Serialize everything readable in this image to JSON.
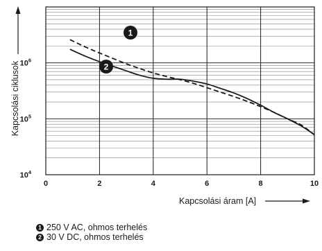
{
  "chart_data": {
    "type": "line",
    "xlabel": "Kapcsolási áram [A]",
    "ylabel": "Kapcsolási ciklusok",
    "xlim": [
      0,
      10
    ],
    "ylim": [
      10000,
      10000000
    ],
    "yscale": "log",
    "grid": true,
    "x_ticks": [
      "0",
      "2",
      "4",
      "6",
      "8",
      "10"
    ],
    "y_ticks": [
      {
        "base": "10",
        "exp": "4",
        "value": 10000
      },
      {
        "base": "10",
        "exp": "5",
        "value": 100000
      },
      {
        "base": "10",
        "exp": "6",
        "value": 1000000
      }
    ],
    "series": [
      {
        "name": "250 V AC, ohmos terhelés",
        "marker": "1",
        "style": "dashed",
        "x": [
          0.9,
          1.5,
          2.0,
          2.5,
          3.0,
          3.5,
          4.0,
          4.5,
          5.0,
          5.5,
          6.0,
          6.5,
          7.0,
          7.5,
          8.0,
          8.5,
          9.0,
          9.5,
          10.0
        ],
        "y": [
          2600000,
          1900000,
          1500000,
          1200000,
          960000,
          790000,
          660000,
          570000,
          500000,
          430000,
          360000,
          300000,
          250000,
          205000,
          165000,
          130000,
          100000,
          78000,
          52000
        ]
      },
      {
        "name": "30 V DC, ohmos terhelés",
        "marker": "2",
        "style": "solid",
        "x": [
          0.9,
          1.5,
          2.0,
          2.5,
          3.0,
          3.5,
          4.0,
          4.5,
          5.0,
          5.5,
          6.0,
          6.5,
          7.0,
          7.5,
          8.0,
          8.5,
          9.0,
          9.5,
          10.0
        ],
        "y": [
          1750000,
          1300000,
          1050000,
          870000,
          720000,
          600000,
          530000,
          510000,
          510000,
          470000,
          420000,
          350000,
          290000,
          230000,
          175000,
          130000,
          100000,
          75000,
          52000
        ]
      }
    ]
  }
}
